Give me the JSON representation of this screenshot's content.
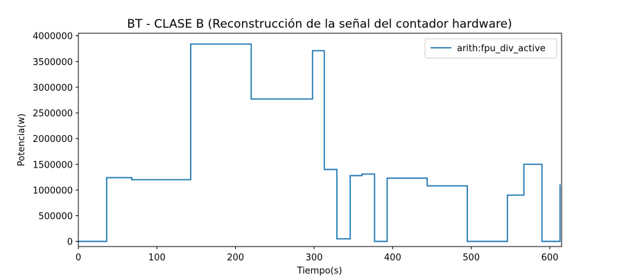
{
  "chart_data": {
    "type": "line",
    "step": "post",
    "title": "BT - CLASE B (Reconstrucción de la señal del contador hardware)",
    "xlabel": "Tiempo(s)",
    "ylabel": "Potencia(w)",
    "xlim": [
      0,
      615
    ],
    "ylim": [
      -100000,
      4050000
    ],
    "xticks": [
      0,
      100,
      200,
      300,
      400,
      500,
      600
    ],
    "yticks": [
      0,
      500000,
      1000000,
      1500000,
      2000000,
      2500000,
      3000000,
      3500000,
      4000000
    ],
    "legend_position": "top-right",
    "grid": false,
    "series": [
      {
        "name": "arith:fpu_div_active",
        "color": "#1f77b4",
        "x": [
          0,
          36,
          68,
          143,
          220,
          298,
          313,
          329,
          346,
          361,
          377,
          393,
          444,
          495,
          546,
          567,
          590,
          613
        ],
        "y": [
          0,
          1240000,
          1200000,
          3840000,
          2770000,
          3710000,
          1400000,
          50000,
          1280000,
          1310000,
          0,
          1230000,
          1080000,
          0,
          900000,
          1500000,
          0,
          1110000
        ]
      }
    ]
  }
}
